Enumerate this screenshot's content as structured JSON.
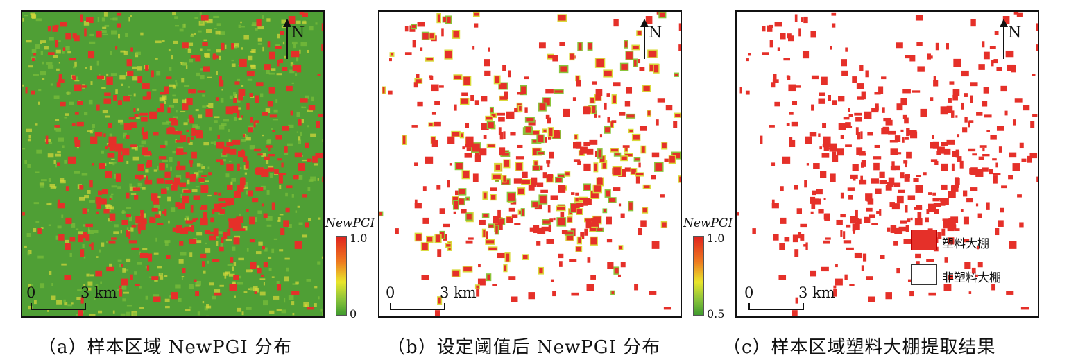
{
  "panels": [
    {
      "id": "a",
      "north_label": "N",
      "scale": {
        "start": "0",
        "end": "3 km"
      },
      "colorbar": {
        "title": "NewPGI",
        "max": "1.0",
        "min": "0"
      },
      "caption": "（a）样本区域 NewPGI 分布"
    },
    {
      "id": "b",
      "north_label": "N",
      "scale": {
        "start": "0",
        "end": "3 km"
      },
      "colorbar": {
        "title": "NewPGI",
        "max": "1.0",
        "min": "0.5"
      },
      "caption": "（b）设定阈值后 NewPGI 分布"
    },
    {
      "id": "c",
      "north_label": "N",
      "scale": {
        "start": "0",
        "end": "3 km"
      },
      "legend": [
        {
          "label": "塑料大棚",
          "color": "#e53029"
        },
        {
          "label": "非塑料大棚",
          "color": "#ffffff"
        }
      ],
      "caption": "（c）样本区域塑料大棚提取结果"
    }
  ],
  "colors": {
    "greenhouse_red": "#e53029",
    "vegetation_green": "#4f9f35",
    "mid_yellow": "#d9d93a",
    "frame": "#111111"
  }
}
